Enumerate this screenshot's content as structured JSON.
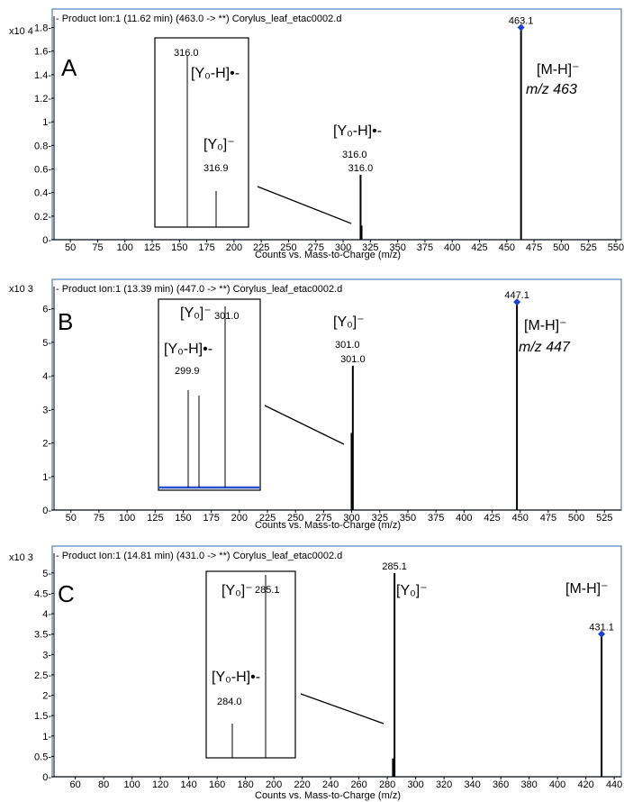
{
  "chart_data": [
    {
      "type": "bar",
      "panel": "A",
      "header": "- Product Ion:1 (11.62 min) (463.0 -> **) Corylus_leaf_etac0002.d",
      "y_multiplier": "x10 4",
      "xlabel": "Counts vs. Mass-to-Charge (m/z)",
      "xlim": [
        35,
        555
      ],
      "ylim": [
        0,
        1.85
      ],
      "x_ticks": [
        50,
        75,
        100,
        125,
        150,
        175,
        200,
        225,
        250,
        275,
        300,
        325,
        350,
        375,
        400,
        425,
        450,
        475,
        500,
        525,
        550
      ],
      "y_ticks": [
        0,
        0.2,
        0.4,
        0.6,
        0.8,
        1,
        1.2,
        1.4,
        1.6,
        1.8
      ],
      "y_tick_labels": [
        "0-",
        "0.2-",
        "0.4-",
        "0.6-",
        "0.8-",
        "1-",
        "1.2-",
        "1.4-",
        "1.6-",
        "1.8-"
      ],
      "peaks": [
        {
          "x": 316.0,
          "y": 0.55,
          "label": "316.0"
        },
        {
          "x": 316.9,
          "y": 0.12,
          "label": ""
        },
        {
          "x": 463.1,
          "y": 1.8,
          "label": "463.1",
          "marker": true
        }
      ],
      "annotations": [
        {
          "text": "[Y₀-H]•-",
          "sub": "316.0"
        },
        {
          "text": "[M-H]⁻",
          "sub": "m/z 463"
        }
      ],
      "inset": {
        "peaks": [
          {
            "label": "316.0",
            "y": 1.0,
            "pos": 0.3
          },
          {
            "label": "316.9",
            "y": 0.2,
            "pos": 0.6
          }
        ],
        "annotations": [
          "[Y₀-H]•-",
          "[Y₀]⁻"
        ]
      }
    },
    {
      "type": "bar",
      "panel": "B",
      "header": "- Product Ion:1 (13.39 min) (447.0 -> **) Corylus_leaf_etac0002.d",
      "y_multiplier": "x10 3",
      "xlabel": "Counts vs. Mass-to-Charge (m/z)",
      "xlim": [
        35,
        540
      ],
      "ylim": [
        0,
        6.5
      ],
      "x_ticks": [
        50,
        75,
        100,
        125,
        150,
        175,
        200,
        225,
        250,
        275,
        300,
        325,
        350,
        375,
        400,
        425,
        450,
        475,
        500,
        525
      ],
      "y_ticks": [
        0,
        1,
        2,
        3,
        4,
        5,
        6
      ],
      "y_tick_labels": [
        "0-",
        "1-",
        "2-",
        "3-",
        "4-",
        "5-",
        "6-"
      ],
      "peaks": [
        {
          "x": 299.9,
          "y": 2.3,
          "label": ""
        },
        {
          "x": 301.0,
          "y": 4.3,
          "label": "301.0"
        },
        {
          "x": 447.1,
          "y": 6.2,
          "label": "447.1",
          "marker": true
        }
      ],
      "annotations": [
        {
          "text": "[Y₀]⁻",
          "sub": "301.0"
        },
        {
          "text": "[M-H]⁻",
          "sub": "m/z 447"
        }
      ],
      "inset": {
        "peaks": [
          {
            "label": "299.9",
            "y": 0.55,
            "pos": 0.28
          },
          {
            "label": "",
            "y": 0.52,
            "pos": 0.4
          },
          {
            "label": "301.0",
            "y": 1.0,
            "pos": 0.6
          }
        ],
        "annotations": [
          "[Y₀]⁻",
          "[Y₀-H]•-"
        ]
      }
    },
    {
      "type": "bar",
      "panel": "C",
      "header": "- Product Ion:1 (14.81 min) (431.0 -> **) Corylus_leaf_etac0002.d",
      "y_multiplier": "x10 3",
      "xlabel": "Counts vs. Mass-to-Charge (m/z)",
      "xlim": [
        45,
        445
      ],
      "ylim": [
        0,
        5.35
      ],
      "x_ticks": [
        60,
        80,
        100,
        120,
        140,
        160,
        180,
        200,
        220,
        240,
        260,
        280,
        300,
        320,
        340,
        360,
        380,
        400,
        420,
        440
      ],
      "y_ticks": [
        0,
        0.5,
        1,
        1.5,
        2,
        2.5,
        3,
        3.5,
        4,
        4.5,
        5
      ],
      "y_tick_labels": [
        "0-",
        "0.5-",
        "1-",
        "1.5-",
        "2-",
        "2.5-",
        "3-",
        "3.5-",
        "4-",
        "4.5-",
        "5-"
      ],
      "peaks": [
        {
          "x": 285.1,
          "y": 5.0,
          "label": "285.1"
        },
        {
          "x": 284.0,
          "y": 0.45,
          "label": ""
        },
        {
          "x": 431.1,
          "y": 3.5,
          "label": "431.1",
          "marker": true
        }
      ],
      "annotations": [
        {
          "text": "[Y₀]⁻",
          "sub": ""
        },
        {
          "text": "[M-H]⁻",
          "sub": ""
        }
      ],
      "inset": {
        "peaks": [
          {
            "label": "284.0",
            "y": 0.2,
            "pos": 0.3
          },
          {
            "label": "285.1",
            "y": 1.0,
            "pos": 0.67
          }
        ],
        "annotations": [
          "[Y₀]⁻",
          "[Y₀-H]•-"
        ]
      }
    }
  ],
  "colors": {
    "frame": "#7a96c9",
    "marker": "#1a3fd6",
    "inset_baseline": "#2a4fd0"
  }
}
